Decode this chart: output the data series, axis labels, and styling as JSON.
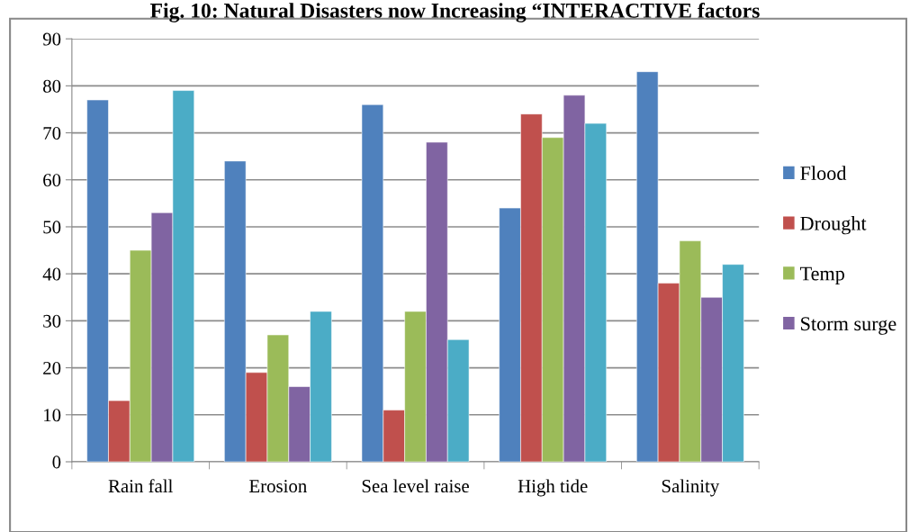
{
  "chart_data": {
    "type": "bar",
    "title": "Fig. 10: Natural Disasters now Increasing “INTERACTIVE factors",
    "categories": [
      "Rain fall",
      "Erosion",
      "Sea level raise",
      "High tide",
      "Salinity"
    ],
    "series": [
      {
        "name": "Flood",
        "color": "#4f81bd",
        "values": [
          77,
          64,
          76,
          54,
          83
        ]
      },
      {
        "name": "Drought",
        "color": "#c0504d",
        "values": [
          13,
          19,
          11,
          74,
          38
        ]
      },
      {
        "name": "Temp",
        "color": "#9bbb59",
        "values": [
          45,
          27,
          32,
          69,
          47
        ]
      },
      {
        "name": "Storm surge",
        "color": "#8064a2",
        "values": [
          53,
          16,
          68,
          78,
          35
        ]
      },
      {
        "color": "#4bacc6",
        "values": [
          79,
          32,
          26,
          72,
          42
        ]
      }
    ],
    "ylim": [
      0,
      90
    ],
    "yticks": [
      0,
      10,
      20,
      30,
      40,
      50,
      60,
      70,
      80,
      90
    ],
    "grid": "y",
    "legend": "right"
  }
}
